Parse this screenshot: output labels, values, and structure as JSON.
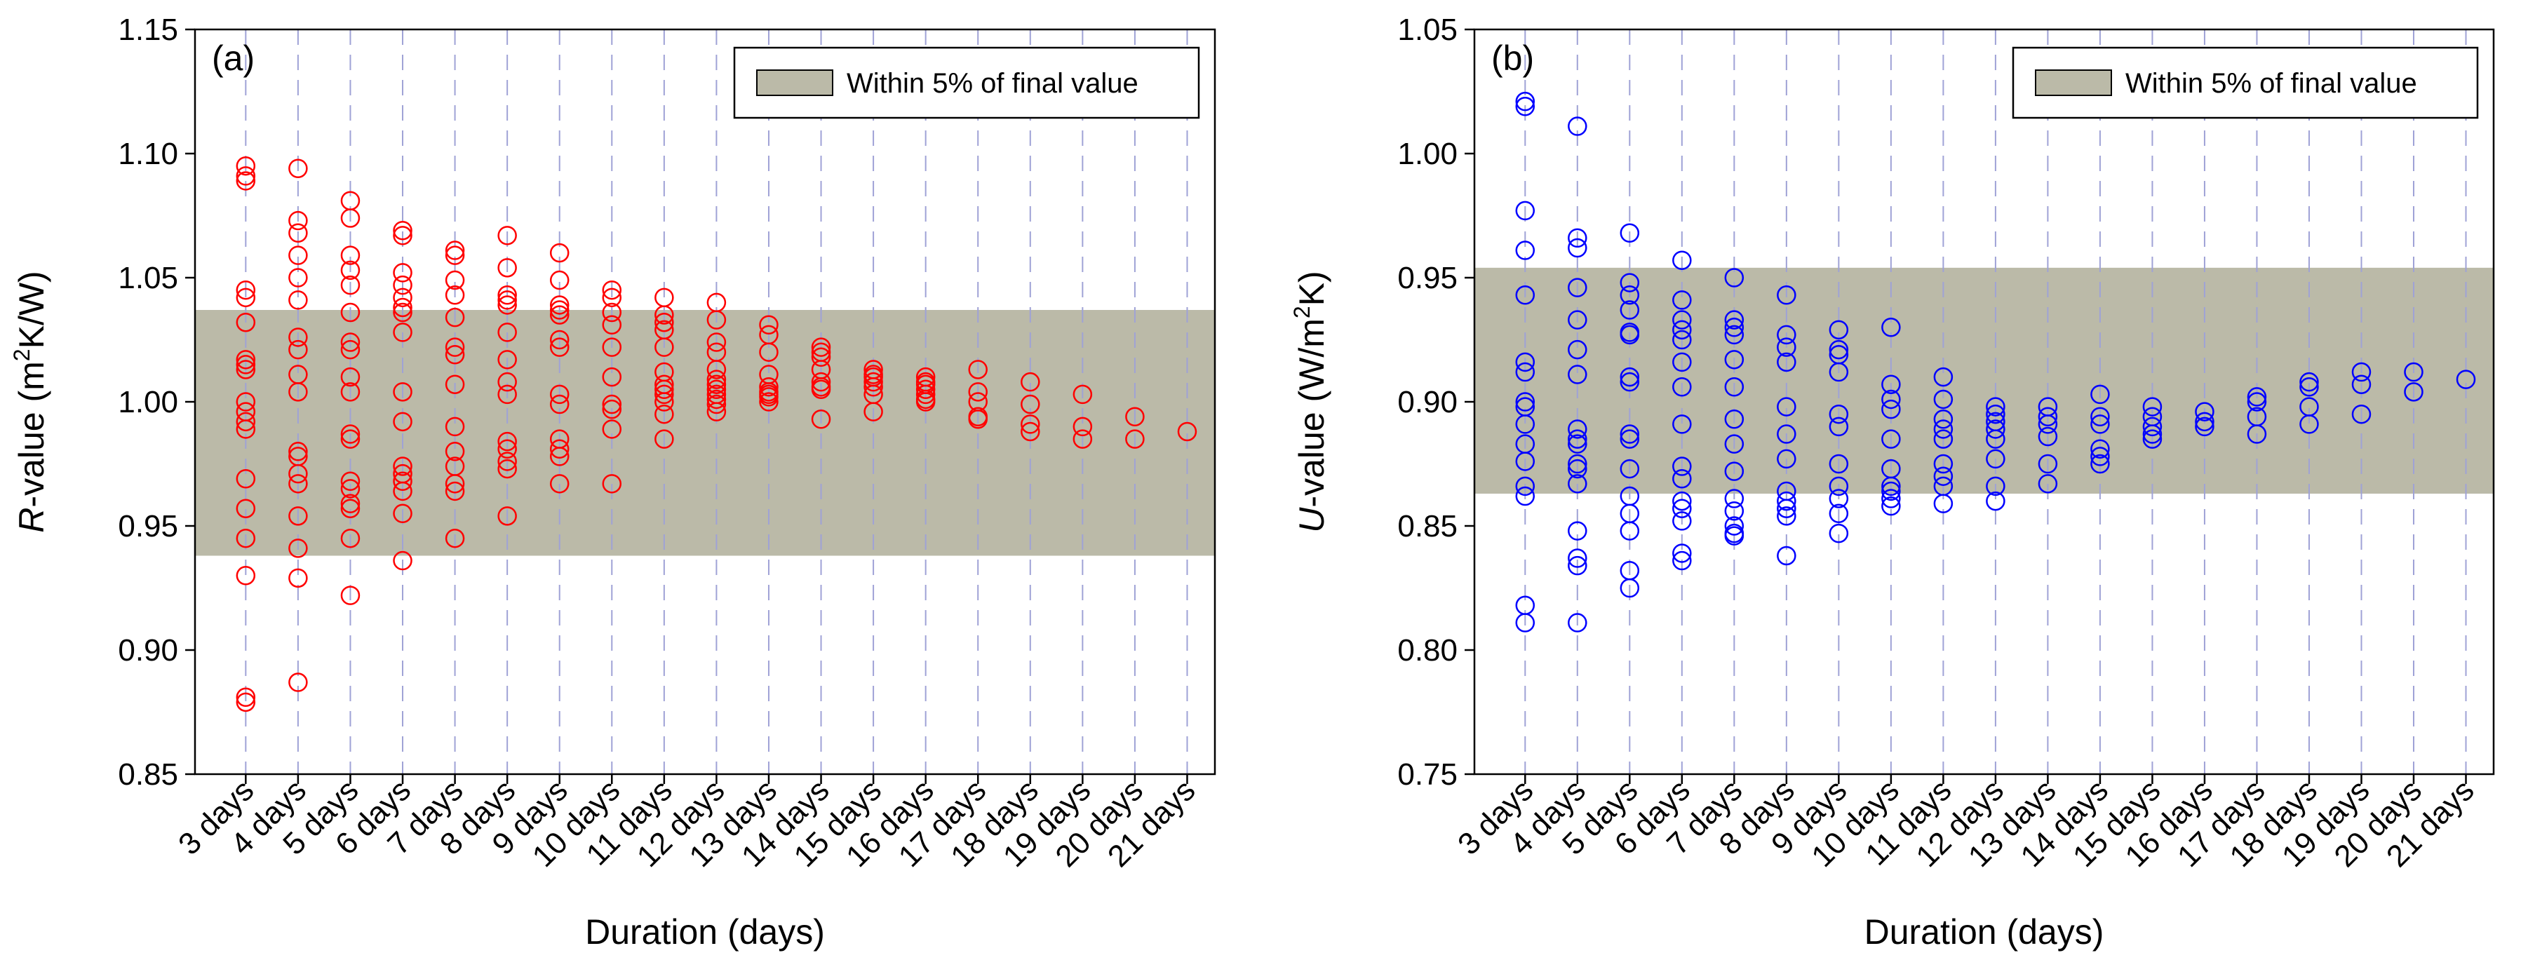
{
  "chart_data": [
    {
      "type": "scatter",
      "panel_label": "(a)",
      "xlabel": "Duration (days)",
      "ylabel": "R-value (m²K/W)",
      "ylabel_parts": {
        "italic": "R",
        "pre": "-value (m",
        "sup": "2",
        "post": "K/W)"
      },
      "ylim": [
        0.85,
        1.15
      ],
      "yticks": [
        0.85,
        0.9,
        0.95,
        1.0,
        1.05,
        1.1,
        1.15
      ],
      "ytick_labels": [
        "0.85",
        "0.90",
        "0.95",
        "1.00",
        "1.05",
        "1.10",
        "1.15"
      ],
      "categories": [
        "3 days",
        "4 days",
        "5 days",
        "6 days",
        "7 days",
        "8 days",
        "9 days",
        "10 days",
        "11 days",
        "12 days",
        "13 days",
        "14 days",
        "15 days",
        "16 days",
        "17 days",
        "18 days",
        "19 days",
        "20 days",
        "21 days"
      ],
      "band": {
        "label": "Within 5% of final value",
        "low": 0.938,
        "high": 1.037,
        "color": "#bbbaa8"
      },
      "marker_color": "#ff0000",
      "grid": "vertical dashed",
      "legend_position": "top-right",
      "series": [
        {
          "name": "3 days",
          "values": [
            1.095,
            1.091,
            1.089,
            1.045,
            1.042,
            1.032,
            1.017,
            1.015,
            1.013,
            1.0,
            0.996,
            0.992,
            0.989,
            0.969,
            0.957,
            0.945,
            0.93,
            0.881,
            0.879
          ]
        },
        {
          "name": "4 days",
          "values": [
            1.094,
            1.073,
            1.068,
            1.059,
            1.05,
            1.041,
            1.026,
            1.021,
            1.011,
            1.004,
            0.98,
            0.978,
            0.971,
            0.967,
            0.954,
            0.941,
            0.929,
            0.887
          ]
        },
        {
          "name": "5 days",
          "values": [
            1.081,
            1.074,
            1.059,
            1.053,
            1.047,
            1.036,
            1.024,
            1.021,
            1.01,
            1.004,
            0.987,
            0.985,
            0.968,
            0.965,
            0.959,
            0.957,
            0.945,
            0.922
          ]
        },
        {
          "name": "6 days",
          "values": [
            1.069,
            1.067,
            1.052,
            1.047,
            1.042,
            1.038,
            1.036,
            1.028,
            1.004,
            0.992,
            0.974,
            0.971,
            0.968,
            0.964,
            0.955,
            0.936
          ]
        },
        {
          "name": "7 days",
          "values": [
            1.061,
            1.059,
            1.049,
            1.043,
            1.034,
            1.022,
            1.019,
            1.007,
            0.99,
            0.98,
            0.974,
            0.967,
            0.964,
            0.945
          ]
        },
        {
          "name": "8 days",
          "values": [
            1.067,
            1.054,
            1.043,
            1.041,
            1.039,
            1.028,
            1.017,
            1.008,
            1.003,
            0.984,
            0.981,
            0.976,
            0.973,
            0.954
          ]
        },
        {
          "name": "9 days",
          "values": [
            1.06,
            1.049,
            1.039,
            1.037,
            1.035,
            1.025,
            1.022,
            1.003,
            0.999,
            0.985,
            0.981,
            0.978,
            0.967
          ]
        },
        {
          "name": "10 days",
          "values": [
            1.045,
            1.042,
            1.036,
            1.031,
            1.022,
            1.01,
            0.999,
            0.997,
            0.989,
            0.967
          ]
        },
        {
          "name": "11 days",
          "values": [
            1.042,
            1.035,
            1.032,
            1.029,
            1.022,
            1.012,
            1.007,
            1.005,
            1.003,
            1.0,
            0.995,
            0.985
          ]
        },
        {
          "name": "12 days",
          "values": [
            1.04,
            1.033,
            1.024,
            1.02,
            1.013,
            1.009,
            1.007,
            1.005,
            1.003,
            1.001,
            0.999,
            0.996
          ]
        },
        {
          "name": "13 days",
          "values": [
            1.031,
            1.027,
            1.02,
            1.011,
            1.006,
            1.004,
            1.003,
            1.002,
            1.0
          ]
        },
        {
          "name": "14 days",
          "values": [
            1.022,
            1.02,
            1.018,
            1.013,
            1.008,
            1.006,
            1.005,
            0.993
          ]
        },
        {
          "name": "15 days",
          "values": [
            1.013,
            1.011,
            1.01,
            1.008,
            1.006,
            1.003,
            0.996
          ]
        },
        {
          "name": "16 days",
          "values": [
            1.01,
            1.008,
            1.007,
            1.005,
            1.003,
            1.001,
            1.0
          ]
        },
        {
          "name": "17 days",
          "values": [
            1.013,
            1.004,
            1.0,
            0.994,
            0.993
          ]
        },
        {
          "name": "18 days",
          "values": [
            1.008,
            0.999,
            0.991,
            0.988
          ]
        },
        {
          "name": "19 days",
          "values": [
            1.003,
            0.99,
            0.985
          ]
        },
        {
          "name": "20 days",
          "values": [
            0.994,
            0.985
          ]
        },
        {
          "name": "21 days",
          "values": [
            0.988
          ]
        }
      ]
    },
    {
      "type": "scatter",
      "panel_label": "(b)",
      "xlabel": "Duration (days)",
      "ylabel": "U-value (W/m²K)",
      "ylabel_parts": {
        "italic": "U",
        "pre": "-value (W/m",
        "sup": "2",
        "post": "K)"
      },
      "ylim": [
        0.75,
        1.05
      ],
      "yticks": [
        0.75,
        0.8,
        0.85,
        0.9,
        0.95,
        1.0,
        1.05
      ],
      "ytick_labels": [
        "0.75",
        "0.80",
        "0.85",
        "0.90",
        "0.95",
        "1.00",
        "1.05"
      ],
      "categories": [
        "3 days",
        "4 days",
        "5 days",
        "6 days",
        "7 days",
        "8 days",
        "9 days",
        "10 days",
        "11 days",
        "12 days",
        "13 days",
        "14 days",
        "15 days",
        "16 days",
        "17 days",
        "18 days",
        "19 days",
        "20 days",
        "21 days"
      ],
      "band": {
        "label": "Within 5% of final value",
        "low": 0.863,
        "high": 0.954,
        "color": "#bbbaa8"
      },
      "marker_color": "#0000ff",
      "grid": "vertical dashed",
      "legend_position": "top-right",
      "series": [
        {
          "name": "3 days",
          "values": [
            1.021,
            1.019,
            0.977,
            0.961,
            0.943,
            0.916,
            0.912,
            0.9,
            0.898,
            0.891,
            0.883,
            0.876,
            0.866,
            0.862,
            0.818,
            0.811
          ]
        },
        {
          "name": "4 days",
          "values": [
            1.011,
            0.966,
            0.962,
            0.946,
            0.933,
            0.921,
            0.911,
            0.889,
            0.885,
            0.883,
            0.875,
            0.873,
            0.867,
            0.848,
            0.837,
            0.834,
            0.811
          ]
        },
        {
          "name": "5 days",
          "values": [
            0.968,
            0.948,
            0.943,
            0.937,
            0.928,
            0.927,
            0.91,
            0.908,
            0.887,
            0.885,
            0.873,
            0.862,
            0.855,
            0.848,
            0.832,
            0.825
          ]
        },
        {
          "name": "6 days",
          "values": [
            0.957,
            0.941,
            0.933,
            0.929,
            0.925,
            0.916,
            0.906,
            0.891,
            0.874,
            0.869,
            0.86,
            0.857,
            0.852,
            0.839,
            0.836
          ]
        },
        {
          "name": "7 days",
          "values": [
            0.95,
            0.933,
            0.93,
            0.927,
            0.917,
            0.906,
            0.893,
            0.883,
            0.872,
            0.861,
            0.856,
            0.85,
            0.847,
            0.846
          ]
        },
        {
          "name": "8 days",
          "values": [
            0.943,
            0.927,
            0.922,
            0.916,
            0.898,
            0.887,
            0.877,
            0.864,
            0.86,
            0.857,
            0.854,
            0.838
          ]
        },
        {
          "name": "9 days",
          "values": [
            0.929,
            0.921,
            0.919,
            0.912,
            0.895,
            0.89,
            0.875,
            0.866,
            0.861,
            0.855,
            0.847
          ]
        },
        {
          "name": "10 days",
          "values": [
            0.93,
            0.907,
            0.901,
            0.897,
            0.885,
            0.873,
            0.866,
            0.864,
            0.861,
            0.858
          ]
        },
        {
          "name": "11 days",
          "values": [
            0.91,
            0.901,
            0.893,
            0.889,
            0.885,
            0.875,
            0.87,
            0.866,
            0.859
          ]
        },
        {
          "name": "12 days",
          "values": [
            0.898,
            0.895,
            0.892,
            0.889,
            0.885,
            0.877,
            0.866,
            0.86
          ]
        },
        {
          "name": "13 days",
          "values": [
            0.898,
            0.894,
            0.891,
            0.886,
            0.875,
            0.867
          ]
        },
        {
          "name": "14 days",
          "values": [
            0.903,
            0.894,
            0.891,
            0.881,
            0.878,
            0.875
          ]
        },
        {
          "name": "15 days",
          "values": [
            0.898,
            0.894,
            0.89,
            0.887,
            0.885
          ]
        },
        {
          "name": "16 days",
          "values": [
            0.896,
            0.892,
            0.89
          ]
        },
        {
          "name": "17 days",
          "values": [
            0.902,
            0.9,
            0.894,
            0.887
          ]
        },
        {
          "name": "18 days",
          "values": [
            0.908,
            0.906,
            0.898,
            0.891
          ]
        },
        {
          "name": "19 days",
          "values": [
            0.912,
            0.907,
            0.895
          ]
        },
        {
          "name": "20 days",
          "values": [
            0.912,
            0.904
          ]
        },
        {
          "name": "21 days",
          "values": [
            0.909
          ]
        }
      ]
    }
  ]
}
